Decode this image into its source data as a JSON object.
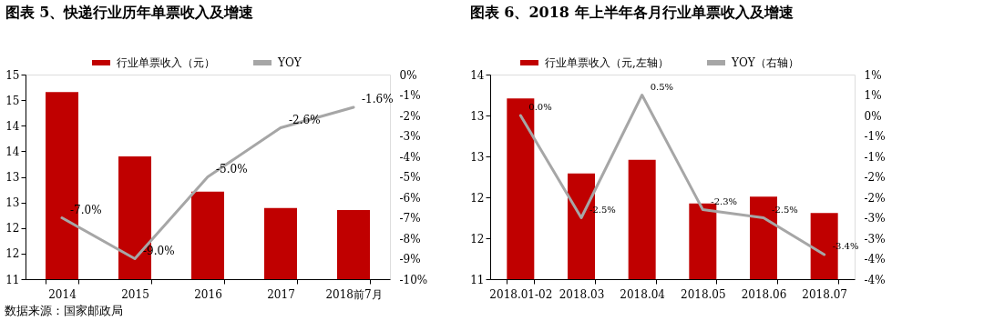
{
  "chart_data": [
    {
      "type": "bar",
      "title": "图表 5、快递行业历年单票收入及增速",
      "legend": "top",
      "categories": [
        "2014",
        "2015",
        "2016",
        "2017",
        "2018前7月"
      ],
      "series": [
        {
          "name": "行业单票收入（元）",
          "color": "#c00000",
          "values": [
            14.66,
            13.4,
            12.71,
            12.39,
            12.35
          ]
        },
        {
          "name": "YOY",
          "type": "line",
          "axis": "y2",
          "color": "#a6a6a6",
          "values": [
            -7.0,
            -9.0,
            -5.0,
            -2.6,
            -1.6
          ],
          "value_labels": [
            "-7.0%",
            "-9.0%",
            "-5.0%",
            "-2.6%",
            "-1.6%"
          ]
        }
      ],
      "ylim": [
        11,
        15
      ],
      "yticks": [
        11,
        {
          "value": 11.5,
          "label": "12"
        },
        12,
        {
          "value": 12.5,
          "label": "13"
        },
        13,
        {
          "value": 13.5,
          "label": "14"
        },
        14,
        {
          "value": 14.5,
          "label": "15"
        },
        15
      ],
      "y2lim": [
        -10,
        0
      ],
      "y2ticks": [
        {
          "value": -10,
          "label": "-10%"
        },
        {
          "value": -9,
          "label": "-9%"
        },
        {
          "value": -8,
          "label": "-8%"
        },
        {
          "value": -7,
          "label": "-7%"
        },
        {
          "value": -6,
          "label": "-6%"
        },
        {
          "value": -5,
          "label": "-5%"
        },
        {
          "value": -4,
          "label": "-4%"
        },
        {
          "value": -3,
          "label": "-3%"
        },
        {
          "value": -2,
          "label": "-2%"
        },
        {
          "value": -1,
          "label": "-1%"
        },
        {
          "value": 0,
          "label": "0%"
        }
      ],
      "annotations": [
        "数据来源：国家邮政局"
      ]
    },
    {
      "type": "bar",
      "title": "图表 6、2018 年上半年各月行业单票收入及增速",
      "legend": "top",
      "categories": [
        "2018.01-02",
        "2018.03",
        "2018.04",
        "2018.05",
        "2018.06",
        "2018.07"
      ],
      "series": [
        {
          "name": "行业单票收入（元,左轴）",
          "color": "#c00000",
          "values": [
            13.65,
            12.55,
            12.75,
            12.11,
            12.21,
            11.97
          ]
        },
        {
          "name": "YOY（右轴）",
          "type": "line",
          "axis": "y2",
          "color": "#a6a6a6",
          "values": [
            0.0,
            -2.5,
            0.5,
            -2.3,
            -2.5,
            -3.4
          ],
          "value_labels": [
            "0.0%",
            "-2.5%",
            "0.5%",
            "-2.3%",
            "-2.5%",
            "-3.4%"
          ]
        }
      ],
      "ylim": [
        11,
        14
      ],
      "yticks": [
        11,
        {
          "value": 11.6,
          "label": "12"
        },
        {
          "value": 12.2,
          "label": "12"
        },
        {
          "value": 12.8,
          "label": "13"
        },
        {
          "value": 13.4,
          "label": "13"
        },
        14
      ],
      "y2lim": [
        -4,
        1
      ],
      "y2ticks": [
        {
          "value": -4,
          "label": "-4%"
        },
        {
          "value": -3.5,
          "label": "-4%"
        },
        {
          "value": -3,
          "label": "-3%"
        },
        {
          "value": -2.5,
          "label": "-3%"
        },
        {
          "value": -2,
          "label": "-2%"
        },
        {
          "value": -1.5,
          "label": "-2%"
        },
        {
          "value": -1,
          "label": "-1%"
        },
        {
          "value": -0.5,
          "label": "-1%"
        },
        {
          "value": 0,
          "label": "0%"
        },
        {
          "value": 0.5,
          "label": "1%"
        },
        {
          "value": 1,
          "label": "1%"
        }
      ]
    }
  ]
}
